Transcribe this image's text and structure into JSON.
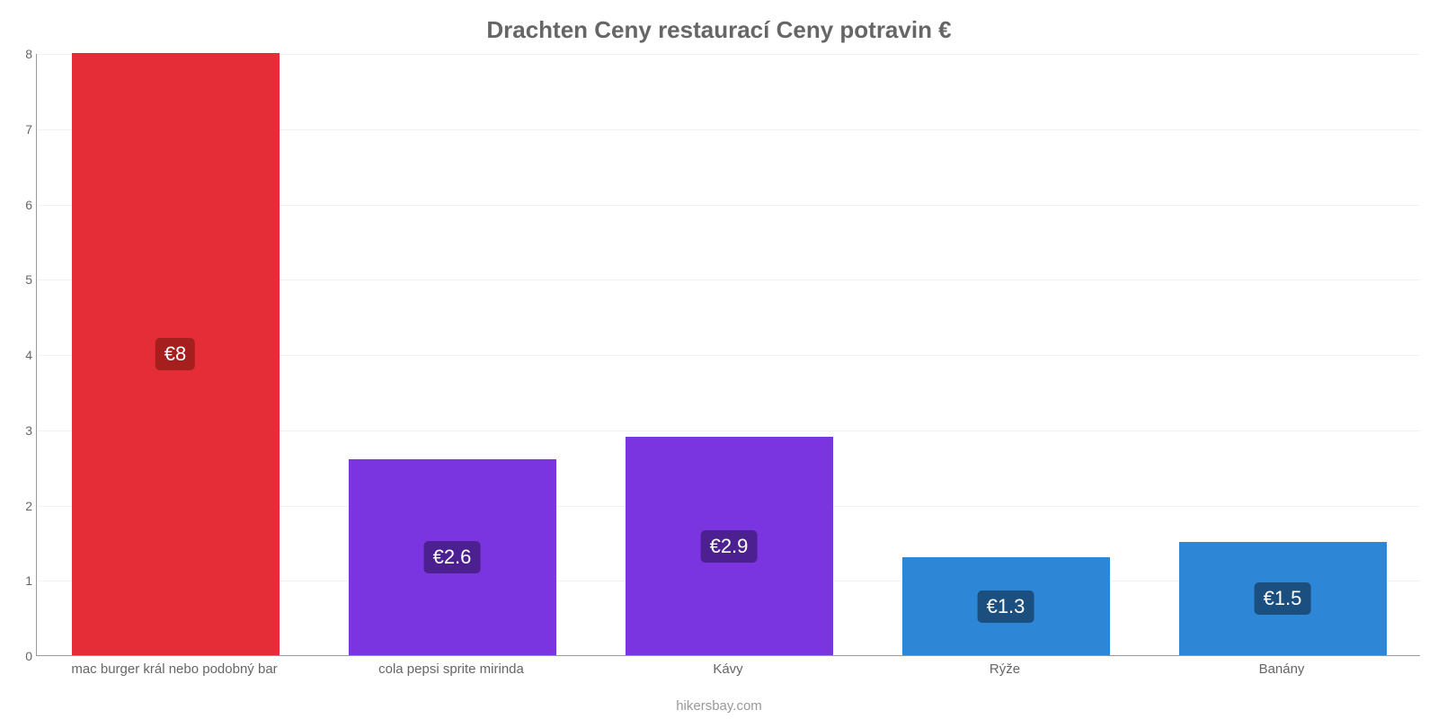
{
  "chart": {
    "type": "bar",
    "title": "Drachten Ceny restaurací Ceny potravin €",
    "title_color": "#666666",
    "title_fontsize": 26,
    "attribution": "hikersbay.com",
    "attribution_color": "#999999",
    "background_color": "#ffffff",
    "grid_color": "#f2f2f2",
    "axis_color": "#999999",
    "tick_label_color": "#666666",
    "tick_label_fontsize": 14,
    "xtick_label_fontsize": 15,
    "y_axis": {
      "min": 0,
      "max": 8,
      "tick_step": 1,
      "ticks": [
        0,
        1,
        2,
        3,
        4,
        5,
        6,
        7,
        8
      ]
    },
    "bars": [
      {
        "category": "mac burger král nebo podobný bar",
        "value": 8.0,
        "display_value": "€8",
        "bar_color": "#e52d38",
        "badge_bg": "#a51f1f"
      },
      {
        "category": "cola pepsi sprite mirinda",
        "value": 2.6,
        "display_value": "€2.6",
        "bar_color": "#7a35e0",
        "badge_bg": "#4c2090"
      },
      {
        "category": "Kávy",
        "value": 2.9,
        "display_value": "€2.9",
        "bar_color": "#7a35e0",
        "badge_bg": "#4c2090"
      },
      {
        "category": "Rýže",
        "value": 1.3,
        "display_value": "€1.3",
        "bar_color": "#2d87d6",
        "badge_bg": "#1b4f80"
      },
      {
        "category": "Banány",
        "value": 1.5,
        "display_value": "€1.5",
        "bar_color": "#2d87d6",
        "badge_bg": "#1b4f80"
      }
    ],
    "value_label_color": "#ffffff",
    "value_label_fontsize": 22,
    "bar_width_ratio": 0.75
  }
}
